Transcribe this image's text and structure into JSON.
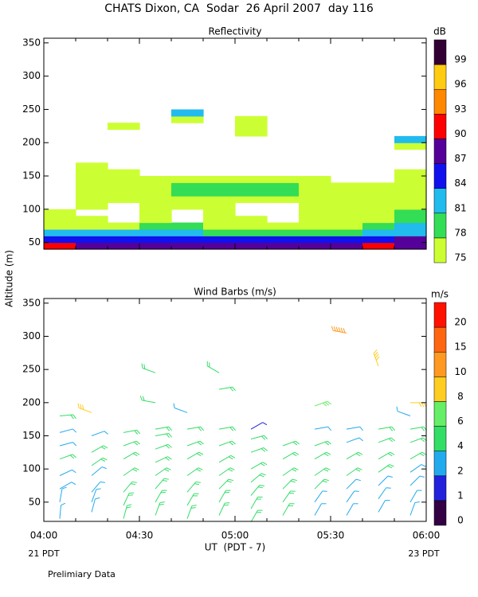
{
  "title": "CHATS Dixon, CA  Sodar  26 April 2007  day 116",
  "ylabel": "Altitude (m)",
  "xlabel": "UT  (PDT - 7)",
  "x_notes": [
    "21 PDT",
    "23 PDT"
  ],
  "footnote": "Prelimiary Data",
  "chart_data": [
    {
      "type": "contour",
      "title": "Reflectivity",
      "xlim": [
        240,
        360
      ],
      "xticks": [
        240,
        270,
        300,
        330,
        360
      ],
      "xticks_minor": [
        250,
        260,
        280,
        290,
        310,
        320,
        340,
        350
      ],
      "ylim": [
        40,
        357
      ],
      "yticks": [
        50,
        100,
        150,
        200,
        250,
        300,
        350
      ],
      "x": [
        240,
        250,
        260,
        270,
        280,
        290,
        300,
        310,
        320,
        330,
        340,
        350,
        360
      ],
      "y": [
        40,
        50,
        60,
        70,
        80,
        90,
        100,
        110,
        120,
        130,
        140,
        150,
        160,
        170,
        180,
        190,
        200,
        210,
        220,
        230,
        240,
        250
      ],
      "z": [
        [
          90,
          89,
          88,
          88,
          88,
          87,
          87,
          87,
          87,
          88,
          90,
          89
        ],
        [
          85,
          85,
          85,
          86,
          86,
          84,
          84,
          84,
          84,
          85,
          86,
          87
        ],
        [
          82,
          81,
          81,
          82,
          82,
          79,
          79,
          79,
          79,
          80,
          82,
          83
        ],
        [
          77,
          77,
          76,
          78,
          78,
          76,
          76,
          77,
          77,
          77,
          79,
          81
        ],
        [
          76,
          76,
          null,
          76,
          null,
          76,
          76,
          null,
          76,
          76,
          77,
          79
        ],
        [
          75,
          null,
          null,
          76,
          null,
          76,
          null,
          null,
          76,
          76,
          76,
          78
        ],
        [
          null,
          76,
          null,
          76,
          76,
          76,
          null,
          null,
          76,
          76,
          76,
          77
        ],
        [
          null,
          76,
          76,
          76,
          76,
          76,
          76,
          76,
          76,
          76,
          76,
          76
        ],
        [
          null,
          76,
          76,
          76,
          79,
          78,
          79,
          79,
          76,
          76,
          76,
          76
        ],
        [
          null,
          76,
          76,
          76,
          79,
          79,
          79,
          79,
          76,
          76,
          76,
          76
        ],
        [
          null,
          76,
          76,
          76,
          76,
          76,
          76,
          76,
          76,
          null,
          null,
          76
        ],
        [
          null,
          76,
          76,
          null,
          null,
          null,
          null,
          null,
          null,
          null,
          null,
          76
        ],
        [
          null,
          76,
          null,
          null,
          null,
          null,
          null,
          null,
          null,
          null,
          null,
          null
        ],
        [
          null,
          null,
          null,
          null,
          null,
          null,
          null,
          null,
          null,
          null,
          null,
          null
        ],
        [
          null,
          null,
          null,
          null,
          null,
          null,
          null,
          null,
          null,
          null,
          null,
          null
        ],
        [
          null,
          null,
          null,
          null,
          null,
          null,
          null,
          null,
          null,
          null,
          null,
          76
        ],
        [
          null,
          null,
          null,
          null,
          null,
          null,
          null,
          null,
          null,
          null,
          null,
          82
        ],
        [
          null,
          null,
          null,
          null,
          null,
          null,
          76,
          null,
          null,
          null,
          null,
          null
        ],
        [
          null,
          null,
          76,
          null,
          null,
          null,
          76,
          null,
          null,
          null,
          null,
          null
        ],
        [
          null,
          null,
          null,
          null,
          76,
          null,
          76,
          null,
          null,
          null,
          null,
          null
        ],
        [
          null,
          null,
          null,
          null,
          81,
          null,
          null,
          null,
          null,
          null,
          null,
          null
        ]
      ],
      "colorbar": {
        "title": "dB",
        "levels": [
          75,
          78,
          81,
          84,
          87,
          90,
          93,
          96,
          99
        ],
        "colors": [
          "#ccff33",
          "#33dd55",
          "#22bbee",
          "#1111ee",
          "#550099",
          "#ff0000",
          "#ff8800",
          "#ffcc11",
          "#330033"
        ]
      }
    },
    {
      "type": "barbs",
      "title": "Wind Barbs (m/s)",
      "xlim": [
        240,
        360
      ],
      "xticks": [
        {
          "value": 240,
          "label": "04:00"
        },
        {
          "value": 270,
          "label": "04:30"
        },
        {
          "value": 300,
          "label": "05:00"
        },
        {
          "value": 330,
          "label": "05:30"
        },
        {
          "value": 360,
          "label": "06:00"
        }
      ],
      "xticks_minor": [
        250,
        260,
        280,
        290,
        310,
        320,
        340,
        350
      ],
      "ylim": [
        21,
        357
      ],
      "yticks": [
        50,
        100,
        150,
        200,
        250,
        300,
        350
      ],
      "columns": [
        {
          "time": 245,
          "altitudes": [
            25,
            50,
            70,
            90,
            115,
            135,
            155,
            180
          ],
          "speeds": [
            3,
            3,
            3,
            3,
            4.5,
            3.5,
            3,
            4.5
          ],
          "directions": [
            5,
            10,
            60,
            65,
            70,
            75,
            75,
            85
          ]
        },
        {
          "time": 255,
          "altitudes": [
            35,
            50,
            65,
            90,
            105,
            125,
            150,
            185
          ],
          "speeds": [
            3,
            3,
            3,
            3,
            4.5,
            4.5,
            3.2,
            8.5
          ],
          "directions": [
            15,
            20,
            40,
            50,
            55,
            60,
            70,
            290
          ]
        },
        {
          "time": 265,
          "altitudes": [
            25,
            45,
            65,
            90,
            115,
            135,
            155
          ],
          "speeds": [
            4.5,
            4.5,
            4.5,
            4.5,
            4.5,
            4.5,
            4.5
          ],
          "directions": [
            15,
            25,
            40,
            55,
            60,
            70,
            80
          ]
        },
        {
          "time": 275,
          "altitudes": [
            30,
            50,
            70,
            90,
            110,
            130,
            150,
            160,
            200,
            245
          ],
          "speeds": [
            4.5,
            4.5,
            4.5,
            4.5,
            4.5,
            4.5,
            4.5,
            4.5,
            4.5,
            4.5
          ],
          "directions": [
            20,
            30,
            40,
            55,
            65,
            70,
            80,
            80,
            280,
            290
          ]
        },
        {
          "time": 285,
          "altitudes": [
            25,
            45,
            65,
            90,
            115,
            135,
            160,
            185
          ],
          "speeds": [
            5,
            5,
            4.5,
            4.5,
            4.5,
            4.5,
            4.5,
            3
          ],
          "directions": [
            20,
            30,
            40,
            55,
            60,
            70,
            80,
            290
          ]
        },
        {
          "time": 295,
          "altitudes": [
            30,
            50,
            70,
            90,
            110,
            135,
            160,
            220,
            245
          ],
          "speeds": [
            5,
            5,
            5,
            5,
            4.5,
            4.5,
            4.5,
            4.5,
            4.5
          ],
          "directions": [
            25,
            30,
            45,
            55,
            60,
            70,
            80,
            80,
            300
          ]
        },
        {
          "time": 305,
          "altitudes": [
            20,
            40,
            60,
            80,
            100,
            125,
            145,
            160
          ],
          "speeds": [
            5,
            5,
            5,
            5,
            5,
            4.5,
            4.5,
            1.5
          ],
          "directions": [
            30,
            30,
            40,
            50,
            60,
            70,
            75,
            60
          ]
        },
        {
          "time": 315,
          "altitudes": [
            30,
            50,
            70,
            90,
            115,
            135
          ],
          "speeds": [
            5,
            5,
            5,
            5,
            4.5,
            4.5
          ],
          "directions": [
            30,
            35,
            45,
            55,
            60,
            70
          ]
        },
        {
          "time": 325,
          "altitudes": [
            30,
            50,
            70,
            90,
            115,
            135,
            160,
            195
          ],
          "speeds": [
            3,
            3,
            4.5,
            4.5,
            4.5,
            4.5,
            3,
            6.5
          ],
          "directions": [
            30,
            35,
            45,
            55,
            60,
            70,
            80,
            70
          ]
        },
        {
          "time": 335,
          "altitudes": [
            30,
            50,
            70,
            90,
            115,
            140,
            160,
            305
          ],
          "speeds": [
            3,
            3,
            3,
            4.5,
            4.5,
            3,
            3,
            14
          ],
          "directions": [
            30,
            35,
            45,
            55,
            60,
            70,
            80,
            280
          ]
        },
        {
          "time": 345,
          "altitudes": [
            35,
            55,
            75,
            95,
            115,
            140,
            160,
            255
          ],
          "speeds": [
            3,
            3,
            3,
            4.5,
            4.5,
            4.5,
            4.5,
            9
          ],
          "directions": [
            30,
            35,
            45,
            55,
            60,
            70,
            80,
            340
          ]
        },
        {
          "time": 355,
          "altitudes": [
            30,
            50,
            75,
            95,
            115,
            140,
            160,
            180,
            200
          ],
          "speeds": [
            3,
            3,
            3,
            3,
            4.5,
            4.5,
            4.5,
            3,
            8.5
          ],
          "directions": [
            20,
            30,
            45,
            55,
            60,
            70,
            80,
            290,
            90
          ]
        }
      ],
      "colorbar": {
        "title": "m/s",
        "levels": [
          0,
          1,
          2,
          4,
          6,
          8,
          10,
          15,
          20
        ],
        "colors": [
          "#330044",
          "#2222dd",
          "#22aaee",
          "#33dd66",
          "#66ee66",
          "#ffcc22",
          "#ff9922",
          "#ff6611",
          "#ff1100"
        ]
      }
    }
  ]
}
